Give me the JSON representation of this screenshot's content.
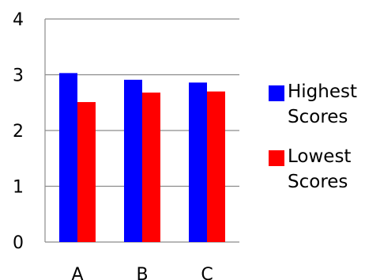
{
  "chart_data": {
    "type": "bar",
    "categories": [
      "A",
      "B",
      "C"
    ],
    "series": [
      {
        "name": "Highest Scores",
        "values": [
          3.03,
          2.91,
          2.86
        ],
        "color": "#0000ff"
      },
      {
        "name": "Lowest Scores",
        "values": [
          2.51,
          2.68,
          2.7
        ],
        "color": "#ff0000"
      }
    ],
    "ylim": [
      0,
      4
    ],
    "yticks": [
      "0",
      "1",
      "2",
      "3",
      "4"
    ],
    "grid": true,
    "legend_position": "right"
  }
}
